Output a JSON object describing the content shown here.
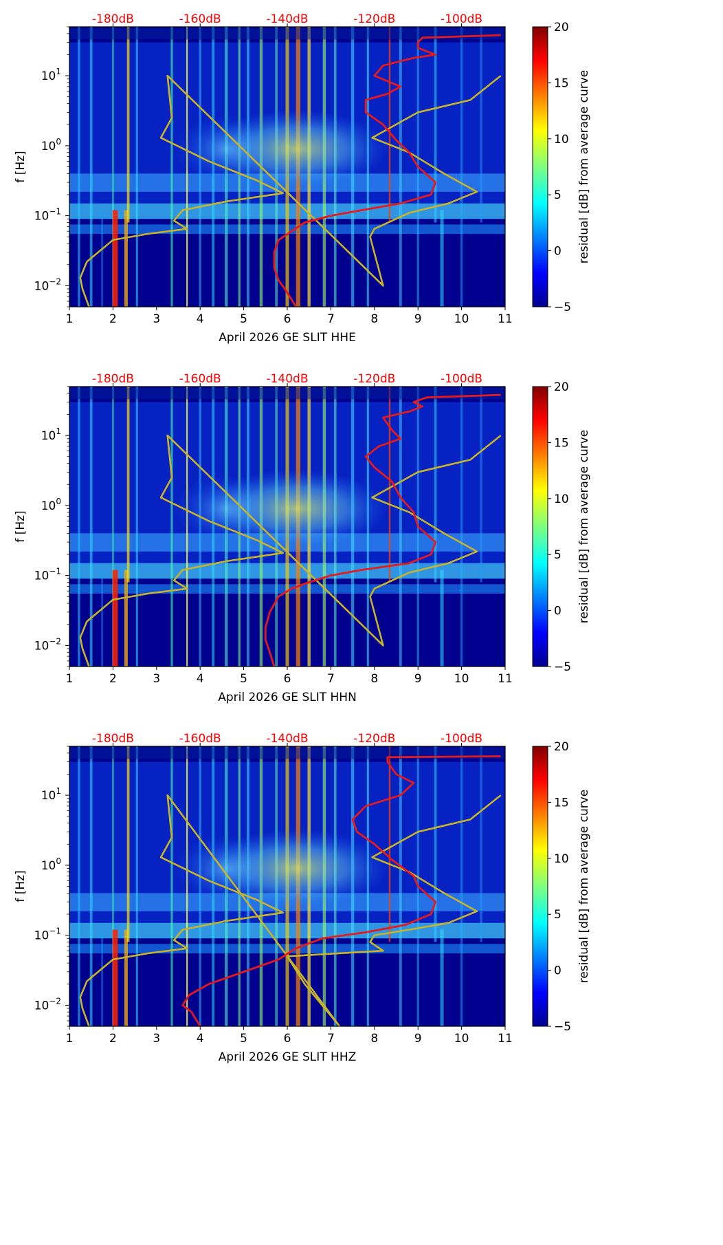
{
  "colors": {
    "red_axis_label": "#ff0000",
    "red_curve": "#e8191a",
    "gold_curve": "#c8b42a",
    "colormap": "jet"
  },
  "y_axis_label": "f [Hz]",
  "colorbar_label": "residual [dB] from average curve",
  "top_axis_ticks": [
    "-180dB",
    "-160dB",
    "-140dB",
    "-120dB",
    "-100dB"
  ],
  "chart_data": [
    {
      "type": "heatmap",
      "title": "",
      "xlabel": "April 2026 GE SLIT  HHE",
      "ylabel": "f [Hz]",
      "x_range": [
        1,
        11
      ],
      "x_ticks": [
        "1",
        "2",
        "3",
        "4",
        "5",
        "6",
        "7",
        "8",
        "9",
        "10",
        "11"
      ],
      "y_scale": "log",
      "y_range": [
        0.005,
        50
      ],
      "y_ticks": [
        "10^-2",
        "10^-1",
        "10^0",
        "10^1"
      ],
      "top_axis": {
        "ticks": [
          "-180dB",
          "-160dB",
          "-140dB",
          "-120dB",
          "-100dB"
        ],
        "tick_positions_x": [
          2,
          4,
          6,
          8,
          10
        ]
      },
      "colorbar": {
        "label": "residual [dB] from average curve",
        "range": [
          -5,
          20
        ],
        "ticks": [
          "20",
          "15",
          "10",
          "5",
          "0",
          "−5"
        ]
      },
      "grid": false,
      "red_curve": {
        "x": [
          6.2,
          6.0,
          5.8,
          5.7,
          5.7,
          5.8,
          6.1,
          6.4,
          7.0,
          7.7,
          8.6,
          9.3,
          9.4,
          9.0,
          8.8,
          8.5,
          8.2,
          7.8,
          7.8,
          8.3,
          8.6,
          8.0,
          8.2,
          8.9,
          9.4,
          9.0,
          9.0,
          9.1,
          10.9
        ],
        "y": [
          0.005,
          0.008,
          0.012,
          0.018,
          0.03,
          0.045,
          0.06,
          0.08,
          0.1,
          0.12,
          0.15,
          0.2,
          0.3,
          0.5,
          0.8,
          1.2,
          2.0,
          3.0,
          4.5,
          5.5,
          7.0,
          10.0,
          14.0,
          18.0,
          20.0,
          25.0,
          30.0,
          35.0,
          38.0
        ]
      },
      "gold_curve": {
        "x": [
          1.45,
          1.3,
          1.25,
          1.4,
          2.0,
          2.8,
          3.7,
          3.4,
          3.6,
          4.6,
          5.9,
          5.3,
          4.2,
          3.1,
          3.35,
          3.25,
          8.2,
          7.9,
          8.0,
          8.8,
          9.7,
          10.35,
          9.6,
          8.8,
          7.95,
          9.0,
          10.2,
          10.9
        ],
        "y": [
          0.005,
          0.009,
          0.013,
          0.022,
          0.045,
          0.055,
          0.065,
          0.085,
          0.12,
          0.16,
          0.21,
          0.32,
          0.6,
          1.3,
          2.5,
          10.0,
          0.01,
          0.05,
          0.065,
          0.11,
          0.15,
          0.22,
          0.4,
          0.8,
          1.3,
          3.0,
          4.5,
          10.0
        ]
      }
    },
    {
      "type": "heatmap",
      "title": "",
      "xlabel": "April 2026 GE SLIT  HHN",
      "ylabel": "f [Hz]",
      "x_range": [
        1,
        11
      ],
      "x_ticks": [
        "1",
        "2",
        "3",
        "4",
        "5",
        "6",
        "7",
        "8",
        "9",
        "10",
        "11"
      ],
      "y_scale": "log",
      "y_range": [
        0.005,
        50
      ],
      "y_ticks": [
        "10^-2",
        "10^-1",
        "10^0",
        "10^1"
      ],
      "top_axis": {
        "ticks": [
          "-180dB",
          "-160dB",
          "-140dB",
          "-120dB",
          "-100dB"
        ],
        "tick_positions_x": [
          2,
          4,
          6,
          8,
          10
        ]
      },
      "colorbar": {
        "label": "residual [dB] from average curve",
        "range": [
          -5,
          20
        ],
        "ticks": [
          "20",
          "15",
          "10",
          "5",
          "0",
          "−5"
        ]
      },
      "grid": false,
      "red_curve": {
        "x": [
          5.7,
          5.6,
          5.5,
          5.5,
          5.6,
          5.8,
          6.1,
          6.5,
          7.0,
          7.7,
          8.8,
          9.3,
          9.4,
          9.0,
          8.9,
          8.6,
          8.4,
          8.0,
          7.8,
          8.1,
          8.6,
          8.4,
          8.2,
          8.8,
          9.1,
          8.9,
          9.2,
          10.9
        ],
        "y": [
          0.005,
          0.008,
          0.012,
          0.018,
          0.03,
          0.05,
          0.065,
          0.08,
          0.1,
          0.12,
          0.15,
          0.2,
          0.3,
          0.5,
          0.8,
          1.3,
          2.2,
          3.5,
          5.0,
          7.0,
          9.0,
          12.0,
          18.0,
          22.0,
          26.0,
          30.0,
          35.0,
          38.0
        ]
      },
      "gold_curve": {
        "x": [
          1.45,
          1.3,
          1.25,
          1.4,
          2.0,
          2.8,
          3.7,
          3.4,
          3.6,
          4.6,
          5.9,
          5.3,
          4.2,
          3.1,
          3.35,
          3.25,
          8.2,
          7.9,
          8.0,
          8.8,
          9.7,
          10.35,
          9.6,
          8.8,
          7.95,
          9.0,
          10.2,
          10.9
        ],
        "y": [
          0.005,
          0.009,
          0.013,
          0.022,
          0.045,
          0.055,
          0.065,
          0.085,
          0.12,
          0.16,
          0.21,
          0.32,
          0.6,
          1.3,
          2.5,
          10.0,
          0.01,
          0.05,
          0.065,
          0.11,
          0.15,
          0.22,
          0.4,
          0.8,
          1.3,
          3.0,
          4.5,
          10.0
        ]
      }
    },
    {
      "type": "heatmap",
      "title": "",
      "xlabel": "April 2026 GE SLIT  HHZ",
      "ylabel": "f [Hz]",
      "x_range": [
        1,
        11
      ],
      "x_ticks": [
        "1",
        "2",
        "3",
        "4",
        "5",
        "6",
        "7",
        "8",
        "9",
        "10",
        "11"
      ],
      "y_scale": "log",
      "y_range": [
        0.005,
        50
      ],
      "y_ticks": [
        "10^-2",
        "10^-1",
        "10^0",
        "10^1"
      ],
      "top_axis": {
        "ticks": [
          "-180dB",
          "-160dB",
          "-140dB",
          "-120dB",
          "-100dB"
        ],
        "tick_positions_x": [
          2,
          4,
          6,
          8,
          10
        ]
      },
      "colorbar": {
        "label": "residual [dB] from average curve",
        "range": [
          -5,
          20
        ],
        "ticks": [
          "20",
          "15",
          "10",
          "5",
          "0",
          "−5"
        ]
      },
      "grid": false,
      "red_curve": {
        "x": [
          4.0,
          3.8,
          3.6,
          3.75,
          4.2,
          5.0,
          5.8,
          6.2,
          6.8,
          7.8,
          8.7,
          9.3,
          9.4,
          9.0,
          8.9,
          8.4,
          8.0,
          7.6,
          7.5,
          7.8,
          8.6,
          8.9,
          8.5,
          8.3,
          8.3,
          10.9
        ],
        "y": [
          0.005,
          0.008,
          0.01,
          0.014,
          0.02,
          0.03,
          0.045,
          0.065,
          0.09,
          0.11,
          0.14,
          0.2,
          0.3,
          0.5,
          0.7,
          1.2,
          2.0,
          3.0,
          4.5,
          7.0,
          10.0,
          15.0,
          20.0,
          30.0,
          35.0,
          36.0
        ]
      },
      "gold_curve": {
        "x": [
          1.45,
          1.3,
          1.25,
          1.4,
          2.0,
          2.8,
          3.7,
          3.4,
          3.6,
          4.6,
          5.9,
          5.3,
          4.2,
          3.1,
          3.35,
          3.25,
          7.2,
          6.4,
          6.0,
          8.2,
          7.9,
          8.0,
          8.8,
          9.7,
          10.35,
          9.6,
          8.8,
          7.95,
          9.0,
          10.2,
          10.9
        ],
        "y": [
          0.005,
          0.009,
          0.013,
          0.022,
          0.045,
          0.055,
          0.065,
          0.085,
          0.12,
          0.16,
          0.21,
          0.32,
          0.6,
          1.3,
          2.5,
          10.0,
          0.005,
          0.02,
          0.05,
          0.06,
          0.08,
          0.1,
          0.12,
          0.15,
          0.22,
          0.4,
          0.8,
          1.3,
          3.0,
          4.5,
          10.0
        ]
      }
    }
  ]
}
